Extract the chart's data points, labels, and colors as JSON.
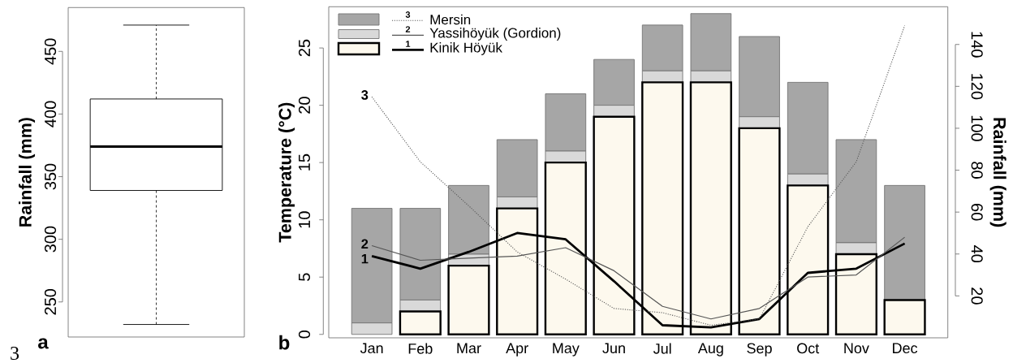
{
  "chart_data": [
    {
      "type": "box",
      "title": "a",
      "ylabel": "Rainfall (mm)",
      "categories": [
        null
      ],
      "boxes": [
        {
          "low": 232,
          "q1": 339,
          "median": 374,
          "q3": 412,
          "high": 471
        }
      ],
      "ylim": [
        222,
        485
      ],
      "yticks": [
        250,
        300,
        350,
        400,
        450
      ],
      "annotations": [
        "3"
      ]
    },
    {
      "type": "bar",
      "title": "b",
      "ylabel": "Temperature (°C)",
      "y2label": "Rainfall (mm)",
      "categories": [
        "Jan",
        "Feb",
        "Mar",
        "Apr",
        "May",
        "Jun",
        "Jul",
        "Aug",
        "Sep",
        "Oct",
        "Nov",
        "Dec"
      ],
      "stacked": true,
      "series": [
        {
          "color": "#fdf9ee",
          "values": [
            0,
            2,
            6,
            11,
            15,
            19,
            22,
            22,
            18,
            13,
            7,
            3
          ]
        },
        {
          "color": "#d9d9d9",
          "values": [
            1,
            1,
            1,
            1,
            1,
            1,
            1,
            1,
            1,
            1,
            1,
            0
          ]
        },
        {
          "color": "#a6a6a6",
          "values": [
            10,
            8,
            6,
            5,
            5,
            4,
            4,
            5,
            7,
            8,
            9,
            10
          ]
        },
        {
          "name": "Kinik Höyük",
          "type": "line",
          "axis": "y2",
          "color": "#000000",
          "line_style": "solid",
          "values": [
            39,
            33,
            41,
            50,
            47,
            27,
            6,
            5,
            9,
            31,
            33,
            45
          ]
        },
        {
          "name": "Yassihöyük (Gordion)",
          "type": "line",
          "axis": "y2",
          "color": "#555555",
          "line_style": "solid",
          "values": [
            44,
            37,
            38,
            39,
            43,
            32,
            15,
            9,
            14,
            29,
            30,
            48
          ]
        },
        {
          "name": "Mersin",
          "type": "line",
          "axis": "y2",
          "color": "#555555",
          "line_style": "dotted",
          "values": [
            115,
            84,
            63,
            41,
            28,
            14,
            12,
            6,
            9,
            53,
            84,
            149
          ]
        }
      ],
      "ylim": [
        -0.3,
        28.6
      ],
      "yticks": [
        0,
        5,
        10,
        15,
        20,
        25
      ],
      "y2lim": [
        0,
        158
      ],
      "y2ticks": [
        20,
        40,
        60,
        80,
        100,
        120,
        140
      ],
      "legend": "top left",
      "annotations": [
        {
          "text": "1",
          "x": "Jan",
          "y": 6.6
        },
        {
          "text": "2",
          "x": "Jan",
          "y": 7.9
        },
        {
          "text": "3",
          "x": "Jan",
          "y": 20.9
        },
        "3",
        "2",
        "1"
      ]
    }
  ]
}
